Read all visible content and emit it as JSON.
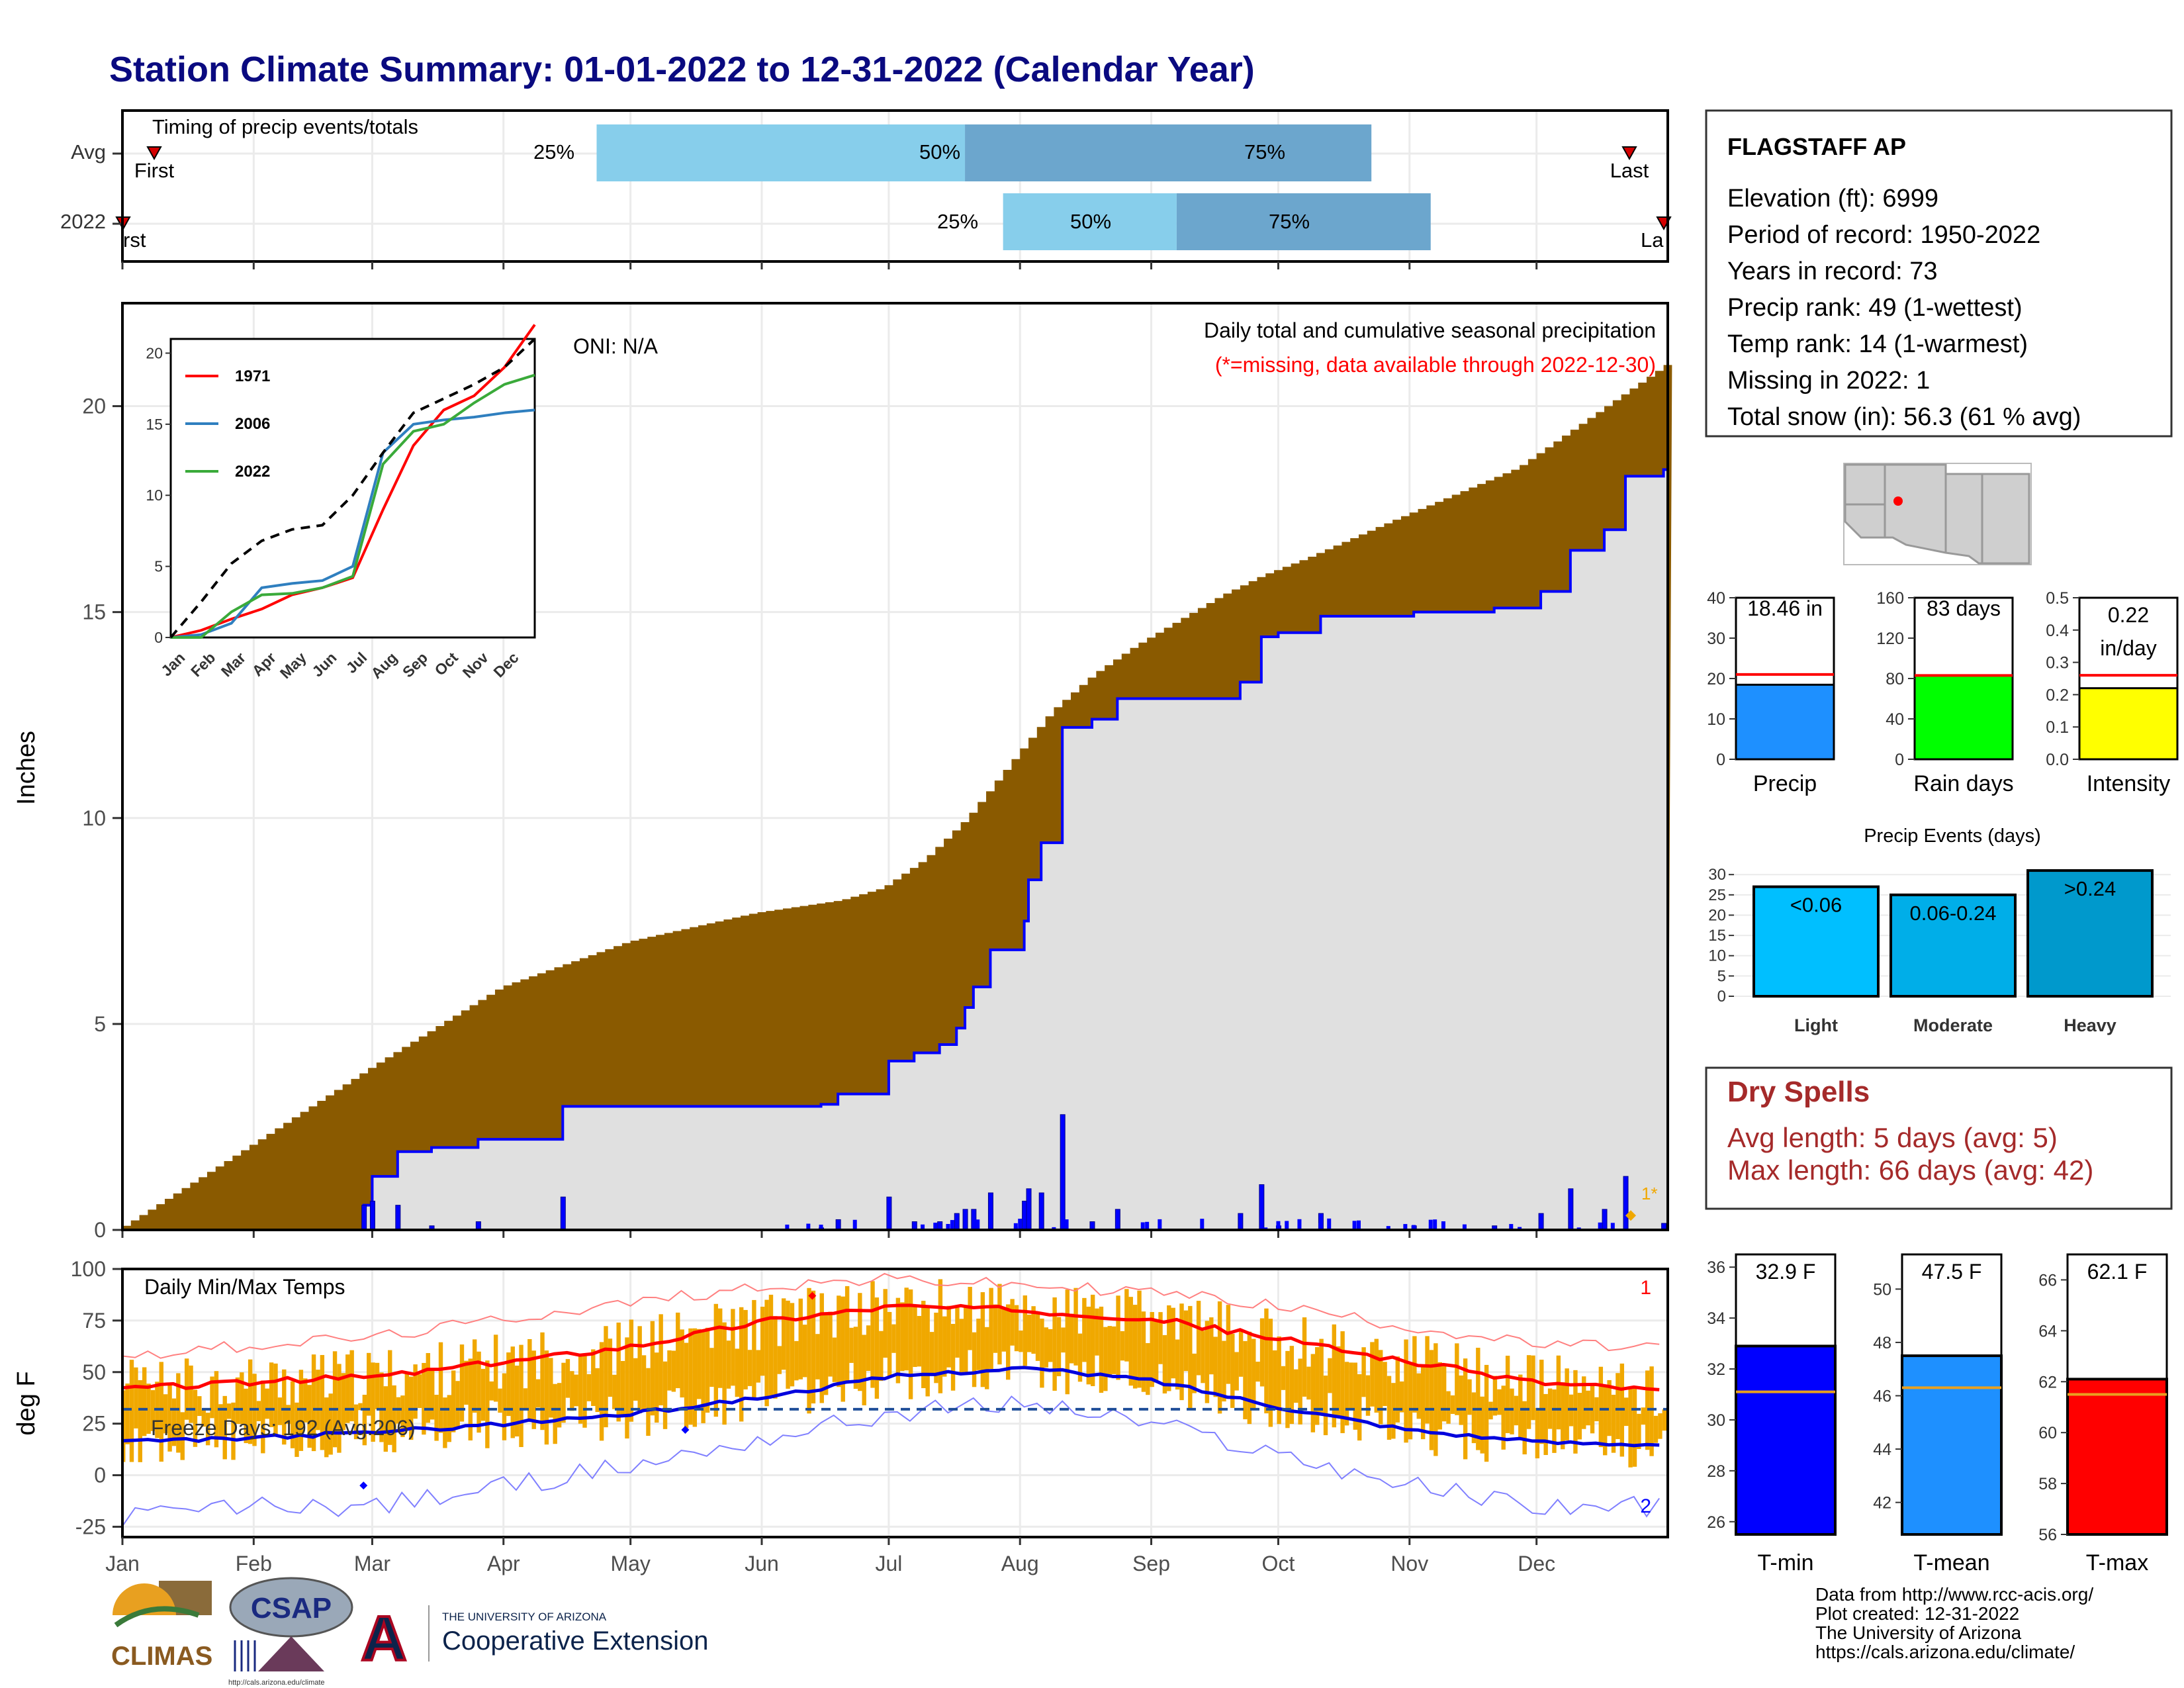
{
  "title": "Station Climate Summary: 01-01-2022 to 12-31-2022 (Calendar Year)",
  "colors": {
    "title": "#0a0a80",
    "brown": "#8a5a00",
    "grey_fill": "#e0e0e0",
    "blue": "#0000ff",
    "light_blue": "#87ceeb",
    "mid_blue": "#6ca6cd",
    "red": "#ff0000",
    "orange": "#f0a800",
    "dryspell": "#a52a2a"
  },
  "timing": {
    "title": "Timing of precip events/totals",
    "rows": [
      "Avg",
      "2022"
    ],
    "first_label": "First",
    "last_label": "Last",
    "first_label_2022": "rst",
    "last_label_2022": "La",
    "pct_labels": [
      "25%",
      "50%",
      "75%"
    ]
  },
  "cumulative": {
    "ylabel": "Inches",
    "label1": "Daily total and cumulative seasonal precipitation",
    "label2": "(*=missing, data available through 2022-12-30)",
    "oni": "ONI: N/A",
    "y_ticks": [
      "0",
      "5",
      "10",
      "15",
      "20"
    ],
    "missing_marker": "1*"
  },
  "inset": {
    "legend": [
      "1971",
      "2006",
      "2022"
    ],
    "y_ticks": [
      "0",
      "5",
      "10",
      "15",
      "20"
    ],
    "x_ticks": [
      "Jan",
      "Feb",
      "Mar",
      "Apr",
      "May",
      "Jun",
      "Jul",
      "Aug",
      "Sep",
      "Oct",
      "Nov",
      "Dec"
    ]
  },
  "months": [
    "Jan",
    "Feb",
    "Mar",
    "Apr",
    "May",
    "Jun",
    "Jul",
    "Aug",
    "Sep",
    "Oct",
    "Nov",
    "Dec"
  ],
  "temps": {
    "title": "Daily Min/Max Temps",
    "ylabel": "deg F",
    "freeze_label": "Freeze Days: 192 (Avg:206)",
    "y_ticks": [
      "100",
      "75",
      "50",
      "25",
      "0",
      "-25"
    ],
    "record_high_count": "1",
    "record_low_count": "2"
  },
  "station": {
    "name": "FLAGSTAFF AP",
    "lines": [
      "Elevation (ft): 6999",
      "Period of record: 1950-2022",
      "Years in record: 73",
      "Precip rank: 49 (1-wettest)",
      "Temp rank: 14 (1-warmest)",
      "Missing in 2022: 1",
      "Total snow (in): 56.3 (61 % avg)"
    ]
  },
  "summary_bars": [
    {
      "label": "Precip",
      "value_text": "18.46 in",
      "ticks": [
        "0",
        "10",
        "20",
        "30",
        "40"
      ],
      "max": 40,
      "value": 18.46,
      "avg": 21,
      "color": "#1e90ff"
    },
    {
      "label": "Rain days",
      "value_text": "83 days",
      "ticks": [
        "0",
        "40",
        "80",
        "120",
        "160"
      ],
      "max": 160,
      "value": 83,
      "avg": 83,
      "color": "#00ff00"
    },
    {
      "label": "Intensity",
      "value_text_1": "0.22",
      "value_text_2": "in/day",
      "ticks": [
        "0.0",
        "0.1",
        "0.2",
        "0.3",
        "0.4",
        "0.5"
      ],
      "max": 0.5,
      "value": 0.22,
      "avg": 0.26,
      "color": "#ffff00"
    }
  ],
  "precip_events": {
    "title": "Precip Events (days)",
    "y_ticks": [
      "0",
      "5",
      "10",
      "15",
      "20",
      "25",
      "30"
    ],
    "bars": [
      {
        "category": "Light",
        "label": "<0.06",
        "value": 27,
        "color": "#00bfff"
      },
      {
        "category": "Moderate",
        "label": "0.06-0.24",
        "value": 25,
        "color": "#00aee8"
      },
      {
        "category": "Heavy",
        "label": ">0.24",
        "value": 31,
        "color": "#0099cc"
      }
    ]
  },
  "dry_spells": {
    "title": "Dry Spells",
    "avg_line": "Avg length: 5 days (avg: 5)",
    "max_line": "Max length: 66 days (avg: 42)"
  },
  "temp_bars": [
    {
      "label": "T-min",
      "value_text": "32.9 F",
      "ticks": [
        "26",
        "28",
        "30",
        "32",
        "34",
        "36"
      ],
      "min": 25.5,
      "max": 36.5,
      "value": 32.9,
      "avg": 31.1,
      "color": "#0000ff"
    },
    {
      "label": "T-mean",
      "value_text": "47.5 F",
      "ticks": [
        "42",
        "44",
        "46",
        "48",
        "50"
      ],
      "min": 40.8,
      "max": 51.3,
      "value": 47.5,
      "avg": 46.3,
      "color": "#1e90ff"
    },
    {
      "label": "T-max",
      "value_text": "62.1 F",
      "ticks": [
        "56",
        "58",
        "60",
        "62",
        "64",
        "66"
      ],
      "min": 56,
      "max": 67,
      "value": 62.1,
      "avg": 61.5,
      "color": "#ff0000"
    }
  ],
  "footer": [
    "Data from http://www.rcc-acis.org/",
    "Plot created: 12-31-2022",
    "The University of Arizona",
    "https://cals.arizona.edu/climate/"
  ],
  "logos": {
    "climas": "CLIMAS",
    "csap": "CSAP",
    "csap_url": "http://cals.arizona.edu/climate",
    "ua_line1": "THE UNIVERSITY OF ARIZONA",
    "ua_line2": "Cooperative Extension",
    "ua_letter": "A"
  },
  "chart_data": [
    {
      "type": "area",
      "title": "Daily total and cumulative seasonal precipitation",
      "ylabel": "Inches",
      "ylim": [
        0,
        22.5
      ],
      "x_units": "day of year",
      "series": [
        {
          "name": "",
          "note": "observed cumulative 2022",
          "x": [
            1,
            45,
            58,
            60,
            66,
            74,
            85,
            105,
            150,
            166,
            170,
            182,
            188,
            194,
            198,
            200,
            202,
            206,
            209,
            214,
            215,
            218,
            223,
            230,
            236,
            265,
            270,
            274,
            284,
            306,
            325,
            336,
            343,
            351,
            356,
            365
          ],
          "y": [
            0,
            0,
            0.6,
            1.3,
            1.9,
            2.0,
            2.2,
            3.0,
            3.0,
            3.05,
            3.3,
            4.1,
            4.3,
            4.5,
            4.9,
            5.4,
            5.9,
            6.8,
            6.8,
            7.5,
            8.5,
            9.4,
            12.2,
            12.4,
            12.9,
            13.3,
            14.4,
            14.5,
            14.9,
            15.0,
            15.1,
            15.5,
            16.5,
            17.0,
            18.3,
            18.46
          ]
        },
        {
          "name": "",
          "note": "average cumulative",
          "x": [
            1,
            30,
            60,
            90,
            120,
            150,
            170,
            180,
            190,
            200,
            210,
            220,
            230,
            240,
            250,
            260,
            270,
            280,
            300,
            330,
            365
          ],
          "y": [
            0.1,
            2.0,
            4.0,
            5.9,
            7.0,
            7.7,
            8.0,
            8.3,
            9.0,
            10.0,
            11.3,
            12.6,
            13.5,
            14.2,
            14.8,
            15.4,
            15.9,
            16.3,
            17.2,
            18.5,
            21.0
          ]
        }
      ]
    },
    {
      "type": "line",
      "title": "",
      "xlabel": "",
      "ylabel": "",
      "ylim": [
        0,
        21
      ],
      "x": [
        0,
        1,
        2,
        3,
        4,
        5,
        6,
        7,
        8,
        9,
        10,
        11,
        12
      ],
      "series": [
        {
          "name": "1971",
          "values": [
            0,
            0.5,
            1.3,
            2.0,
            3.0,
            3.5,
            4.2,
            9.0,
            13.5,
            16.0,
            17.0,
            19.0,
            22.0
          ]
        },
        {
          "name": "2006",
          "values": [
            0,
            0.2,
            1.0,
            3.5,
            3.8,
            4.0,
            5.0,
            13.0,
            15.0,
            15.3,
            15.5,
            15.8,
            16.0
          ]
        },
        {
          "name": "2022",
          "values": [
            0,
            0,
            1.8,
            3.0,
            3.1,
            3.5,
            4.3,
            12.2,
            14.5,
            15.0,
            16.5,
            17.8,
            18.46
          ]
        },
        {
          "name": "",
          "note": "average",
          "values": [
            0,
            2.5,
            5.2,
            6.8,
            7.6,
            7.9,
            10.0,
            13.0,
            15.8,
            16.8,
            17.8,
            19.0,
            21.0
          ]
        }
      ]
    },
    {
      "type": "line",
      "title": "Daily Min/Max Temps",
      "ylabel": "deg F",
      "ylim": [
        -30,
        100
      ],
      "x_units": "month",
      "x": [
        0,
        1,
        2,
        3,
        4,
        5,
        6,
        7,
        8,
        9,
        10,
        11,
        12
      ],
      "series": [
        {
          "name": "",
          "note": "normal max",
          "values": [
            42,
            45,
            48,
            55,
            63,
            75,
            82,
            80,
            76,
            66,
            55,
            45,
            41
          ]
        },
        {
          "name": "",
          "note": "normal min",
          "values": [
            16,
            18,
            21,
            25,
            30,
            38,
            48,
            52,
            46,
            33,
            22,
            16,
            15
          ]
        },
        {
          "name": "",
          "note": "record max",
          "values": [
            58,
            63,
            67,
            76,
            84,
            92,
            95,
            92,
            89,
            82,
            72,
            63,
            62
          ]
        },
        {
          "name": "",
          "note": "record min",
          "values": [
            -20,
            -15,
            -15,
            -5,
            5,
            18,
            30,
            35,
            25,
            10,
            -5,
            -15,
            -15
          ]
        },
        {
          "name": "",
          "note": "freeze threshold",
          "values": [
            32,
            32,
            32,
            32,
            32,
            32,
            32,
            32,
            32,
            32,
            32,
            32,
            32
          ]
        }
      ]
    },
    {
      "type": "bar",
      "categories": [
        "Light",
        "Moderate",
        "Heavy"
      ],
      "values": [
        27,
        25,
        31
      ],
      "title": "Precip Events (days)",
      "ylim": [
        0,
        31
      ]
    },
    {
      "type": "bar",
      "categories": [
        "Precip",
        "Rain days",
        "Intensity",
        "T-min",
        "T-mean",
        "T-max"
      ],
      "values": [
        18.46,
        83,
        0.22,
        32.9,
        47.5,
        62.1
      ]
    }
  ]
}
